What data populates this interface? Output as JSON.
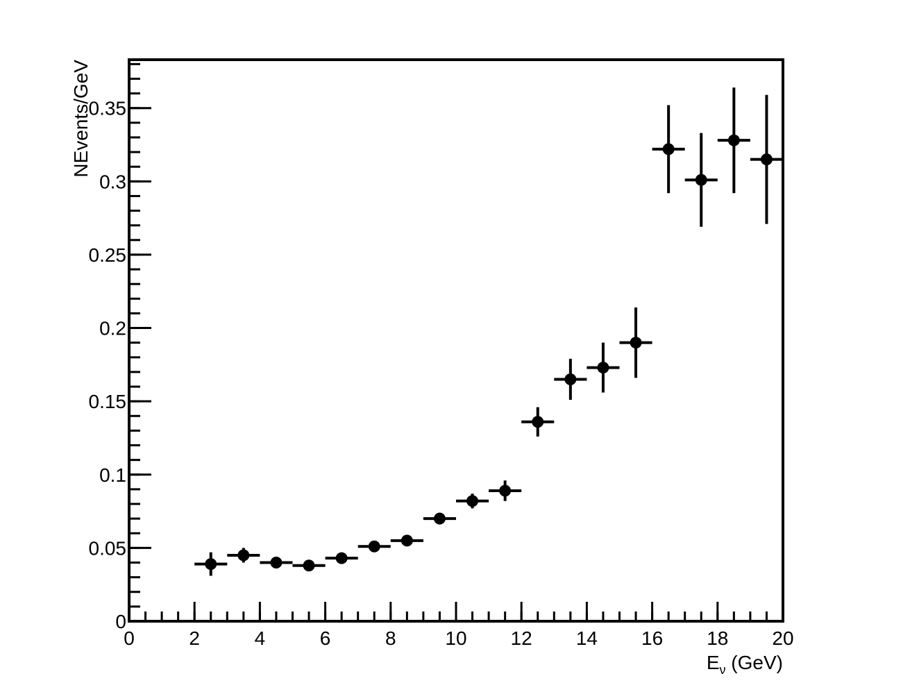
{
  "chart_data": {
    "type": "scatter",
    "title": "",
    "xlabel": "E",
    "xlabel_subscript": "ν",
    "xlabel_unit": " (GeV)",
    "ylabel": "NEvents/GeV",
    "xlim": [
      0,
      20
    ],
    "ylim": [
      0,
      0.383
    ],
    "grid": false,
    "legend": "none",
    "x_ticks": [
      0,
      2,
      4,
      6,
      8,
      10,
      12,
      14,
      16,
      18,
      20
    ],
    "x_tick_labels": [
      "0",
      "2",
      "4",
      "6",
      "8",
      "10",
      "12",
      "14",
      "16",
      "18",
      "20"
    ],
    "x_minor_step": 0.5,
    "y_ticks": [
      0,
      0.05,
      0.1,
      0.15,
      0.2,
      0.25,
      0.3,
      0.35
    ],
    "y_tick_labels": [
      "0",
      "0.05",
      "0.1",
      "0.15",
      "0.2",
      "0.25",
      "0.3",
      "0.35"
    ],
    "y_minor_step": 0.01,
    "series": [
      {
        "marker_color": "#000000",
        "points": [
          {
            "x": 2.5,
            "y": 0.039,
            "x_err": 0.5,
            "y_err": 0.008
          },
          {
            "x": 3.5,
            "y": 0.045,
            "x_err": 0.5,
            "y_err": 0.005
          },
          {
            "x": 4.5,
            "y": 0.04,
            "x_err": 0.5,
            "y_err": 0.004
          },
          {
            "x": 5.5,
            "y": 0.038,
            "x_err": 0.5,
            "y_err": 0.003
          },
          {
            "x": 6.5,
            "y": 0.043,
            "x_err": 0.5,
            "y_err": 0.003
          },
          {
            "x": 7.5,
            "y": 0.051,
            "x_err": 0.5,
            "y_err": 0.003
          },
          {
            "x": 8.5,
            "y": 0.055,
            "x_err": 0.5,
            "y_err": 0.003
          },
          {
            "x": 9.5,
            "y": 0.07,
            "x_err": 0.5,
            "y_err": 0.004
          },
          {
            "x": 10.5,
            "y": 0.082,
            "x_err": 0.5,
            "y_err": 0.005
          },
          {
            "x": 11.5,
            "y": 0.089,
            "x_err": 0.5,
            "y_err": 0.007
          },
          {
            "x": 12.5,
            "y": 0.136,
            "x_err": 0.5,
            "y_err": 0.01
          },
          {
            "x": 13.5,
            "y": 0.165,
            "x_err": 0.5,
            "y_err": 0.014
          },
          {
            "x": 14.5,
            "y": 0.173,
            "x_err": 0.5,
            "y_err": 0.017
          },
          {
            "x": 15.5,
            "y": 0.19,
            "x_err": 0.5,
            "y_err": 0.024
          },
          {
            "x": 16.5,
            "y": 0.322,
            "x_err": 0.5,
            "y_err": 0.03
          },
          {
            "x": 17.5,
            "y": 0.301,
            "x_err": 0.5,
            "y_err": 0.032
          },
          {
            "x": 18.5,
            "y": 0.328,
            "x_err": 0.5,
            "y_err": 0.036
          },
          {
            "x": 19.5,
            "y": 0.315,
            "x_err": 0.5,
            "y_err": 0.044
          }
        ]
      }
    ]
  }
}
